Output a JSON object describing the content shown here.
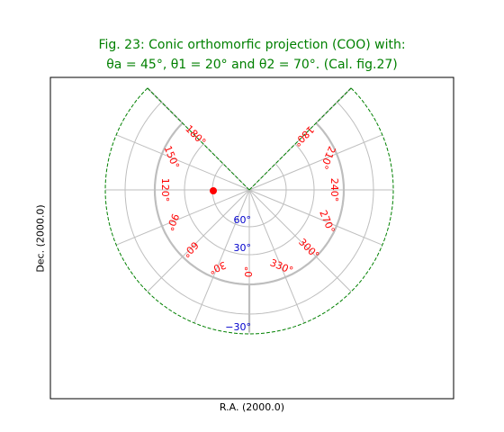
{
  "figure": {
    "title_line1": "Fig. 23: Conic orthomorfic projection (COO) with:",
    "title_line2": "θa = 45°, θ1 = 20° and θ2 = 70°. (Cal. fig.27)",
    "xlabel": "R.A. (2000.0)",
    "ylabel": "Dec. (2000.0)"
  },
  "graticule": {
    "ra_labels": [
      "0°",
      "30°",
      "60°",
      "90°",
      "120°",
      "150°",
      "180°",
      "180°",
      "210°",
      "240°",
      "270°",
      "300°",
      "330°"
    ],
    "dec_labels": [
      "60°",
      "30°",
      "−30°"
    ],
    "colors": {
      "title": "#008000",
      "ra_label": "#ff0000",
      "dec_label": "#0000cc",
      "grid": "#bebebe",
      "border": "#008000",
      "marker": "#ff0000"
    }
  }
}
